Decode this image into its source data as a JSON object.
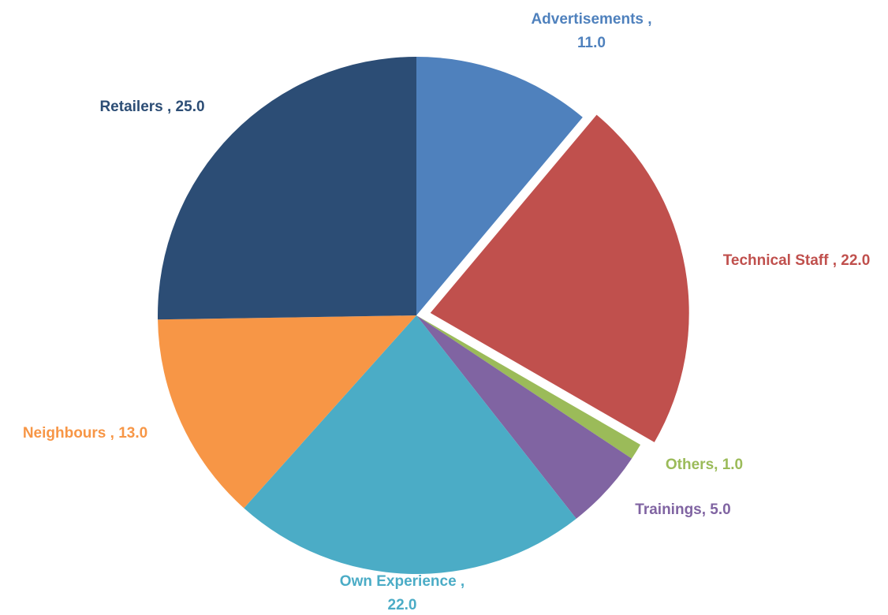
{
  "chart_data": {
    "type": "pie",
    "title": "",
    "slices": [
      {
        "category": "Advertisements",
        "value": 11.0,
        "label_lines": [
          "Advertisements ,",
          "11.0"
        ],
        "color": "#4F81BD",
        "exploded": false
      },
      {
        "category": "Technical Staff",
        "value": 22.0,
        "label_lines": [
          "Technical Staff , 22.0"
        ],
        "color": "#C0504D",
        "exploded": true
      },
      {
        "category": "Others",
        "value": 1.0,
        "label_lines": [
          "Others, 1.0"
        ],
        "color": "#9BBB59",
        "exploded": false
      },
      {
        "category": "Trainings",
        "value": 5.0,
        "label_lines": [
          "Trainings, 5.0"
        ],
        "color": "#8064A2",
        "exploded": false
      },
      {
        "category": "Own Experience",
        "value": 22.0,
        "label_lines": [
          "Own Experience ,",
          "22.0"
        ],
        "color": "#4BACC6",
        "exploded": false
      },
      {
        "category": "Neighbours",
        "value": 13.0,
        "label_lines": [
          "Neighbours , 13.0"
        ],
        "color": "#F79646",
        "exploded": false
      },
      {
        "category": "Retailers",
        "value": 25.0,
        "label_lines": [
          "Retailers , 25.0"
        ],
        "color": "#2C4D75",
        "exploded": false
      }
    ],
    "legend": "none",
    "data_labels": "outside"
  }
}
